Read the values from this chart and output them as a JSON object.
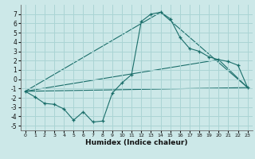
{
  "title": "",
  "xlabel": "Humidex (Indice chaleur)",
  "ylabel": "",
  "bg_color": "#cce8e8",
  "line_color": "#1a6e6a",
  "grid_color": "#aad4d4",
  "xlim": [
    -0.5,
    23.5
  ],
  "ylim": [
    -5.5,
    8.0
  ],
  "xticks": [
    0,
    1,
    2,
    3,
    4,
    5,
    6,
    7,
    8,
    9,
    10,
    11,
    12,
    13,
    14,
    15,
    16,
    17,
    18,
    19,
    20,
    21,
    22,
    23
  ],
  "yticks": [
    -5,
    -4,
    -3,
    -2,
    -1,
    0,
    1,
    2,
    3,
    4,
    5,
    6,
    7
  ],
  "line1_x": [
    0,
    1,
    2,
    3,
    4,
    5,
    6,
    7,
    8,
    9,
    10,
    11,
    12,
    13,
    14,
    15,
    16,
    17,
    18,
    19,
    20,
    21,
    22,
    23
  ],
  "line1_y": [
    -1.3,
    -1.9,
    -2.6,
    -2.7,
    -3.2,
    -4.4,
    -3.5,
    -4.6,
    -4.5,
    -1.5,
    -0.4,
    0.5,
    6.2,
    7.0,
    7.2,
    6.5,
    4.5,
    3.3,
    3.0,
    2.4,
    2.1,
    1.9,
    1.5,
    -0.9
  ],
  "line2_x": [
    0,
    14,
    23
  ],
  "line2_y": [
    -1.3,
    7.2,
    -0.9
  ],
  "line3_x": [
    0,
    20,
    23
  ],
  "line3_y": [
    -1.3,
    2.1,
    -0.9
  ],
  "line4_x": [
    0,
    23
  ],
  "line4_y": [
    -1.3,
    -0.9
  ],
  "xlabel_fontsize": 6.5,
  "xlabel_fontweight": "bold",
  "tick_fontsize_x": 4.5,
  "tick_fontsize_y": 5.5
}
